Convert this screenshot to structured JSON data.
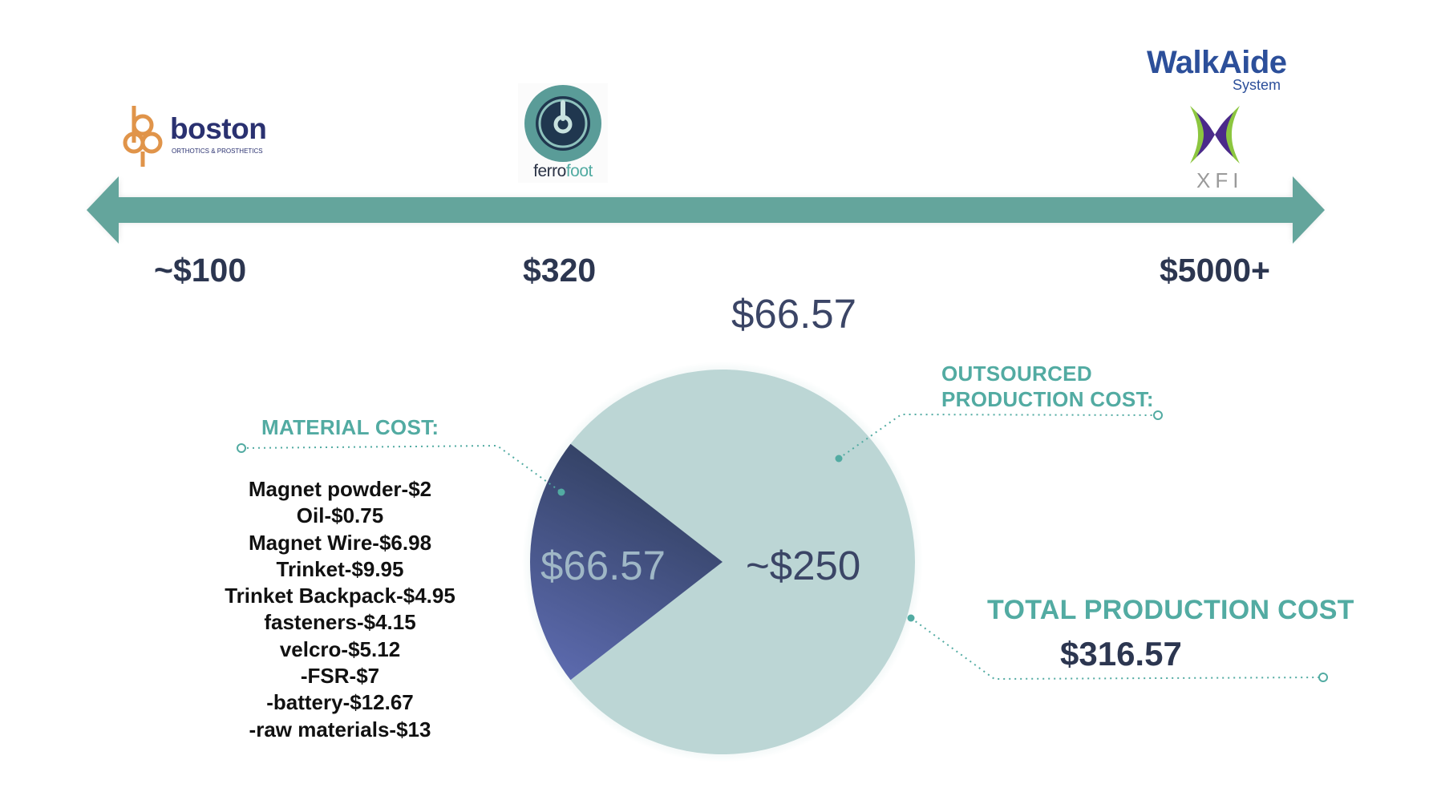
{
  "timeline": {
    "arrow_color": "#64a59c",
    "markers": [
      {
        "brand": "boston",
        "brand_sub": "ORTHOTICS & PROSTHETICS",
        "price": "~$100"
      },
      {
        "brand": "ferrofoot",
        "brand_part1": "ferro",
        "brand_part2": "foot",
        "price": "$320"
      },
      {
        "brand": "WalkAide",
        "brand_sub": "System",
        "brand_mark": "XFI",
        "price": "$5000+"
      }
    ]
  },
  "chart_data": {
    "type": "pie",
    "title": "$66.57",
    "slices": [
      {
        "label": "$66.57",
        "value": 66.57,
        "color": "#3b466f"
      },
      {
        "label": "~$250",
        "value": 250,
        "color": "#bcd6d5"
      }
    ],
    "annotations": {
      "material_heading": "MATERIAL COST:",
      "outsourced_heading_line1": "OUTSOURCED",
      "outsourced_heading_line2": "PRODUCTION COST:",
      "total_heading": "TOTAL PRODUCTION COST",
      "total_value": "$316.57"
    },
    "materials": [
      "Magnet powder-$2",
      "Oil-$0.75",
      "Magnet Wire-$6.98",
      "Trinket-$9.95",
      "Trinket Backpack-$4.95",
      "fasteners-$4.15",
      "velcro-$5.12",
      "-FSR-$7",
      "-battery-$12.67",
      "-raw materials-$13"
    ]
  }
}
